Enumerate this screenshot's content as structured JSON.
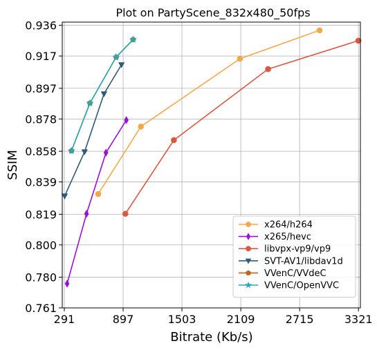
{
  "chart_data": {
    "type": "line",
    "title": "Plot on PartyScene_832x480_50fps",
    "xlabel": "Bitrate (Kb/s)",
    "ylabel": "SSIM",
    "xlim": [
      270,
      3341
    ],
    "ylim": [
      0.761,
      0.938
    ],
    "xticks": [
      291,
      897,
      1503,
      2109,
      2715,
      3321
    ],
    "yticks": [
      0.761,
      0.78,
      0.8,
      0.819,
      0.839,
      0.858,
      0.878,
      0.897,
      0.917,
      0.936
    ],
    "ytick_labels": [
      "0.761",
      "0.780",
      "0.800",
      "0.819",
      "0.839",
      "0.858",
      "0.878",
      "0.897",
      "0.917",
      "0.936"
    ],
    "grid": true,
    "legend_position": "lower-right",
    "series": [
      {
        "name": "x264/h264",
        "color": "#f4a84d",
        "marker": "circle",
        "x": [
          640,
          1080,
          2100,
          2920
        ],
        "y": [
          0.8315,
          0.8733,
          0.9153,
          0.9329
        ]
      },
      {
        "name": "x265/hevc",
        "color": "#9b0fd7",
        "marker": "diamond",
        "x": [
          320,
          520,
          720,
          930
        ],
        "y": [
          0.776,
          0.8193,
          0.8571,
          0.8773
        ]
      },
      {
        "name": "libvpx-vp9/vp9",
        "color": "#d95840",
        "marker": "circle",
        "x": [
          920,
          1420,
          2390,
          3320
        ],
        "y": [
          0.8193,
          0.8649,
          0.9089,
          0.9265
        ]
      },
      {
        "name": "SVT-AV1/libdav1d",
        "color": "#2e5a7a",
        "marker": "triangle-down",
        "x": [
          295,
          500,
          700,
          880
        ],
        "y": [
          0.8303,
          0.8577,
          0.8936,
          0.9116
        ]
      },
      {
        "name": "VVenC/VVdeC",
        "color": "#c0651a",
        "marker": "pentagon",
        "x": [
          365,
          555,
          825,
          1000
        ],
        "y": [
          0.8583,
          0.8878,
          0.9163,
          0.9272
        ]
      },
      {
        "name": "VVenC/OpenVVC",
        "color": "#26a9b7",
        "marker": "star",
        "x": [
          365,
          555,
          825,
          1000
        ],
        "y": [
          0.8583,
          0.8878,
          0.9163,
          0.9272
        ]
      }
    ]
  }
}
